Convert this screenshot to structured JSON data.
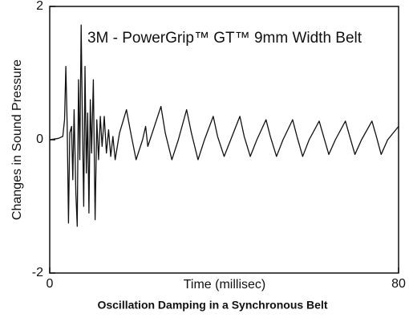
{
  "chart_data": {
    "type": "line",
    "title": "3M - PowerGrip™ GT™ 9mm Width Belt",
    "caption": "Oscillation Damping in a Synchronous Belt",
    "x_label": "Time (millisec)",
    "y_label": "Changes in Sound Pressure",
    "x": [
      0,
      2,
      3,
      3.4,
      3.7,
      4.0,
      4.3,
      4.6,
      5.0,
      5.3,
      5.6,
      6.0,
      6.3,
      6.6,
      6.9,
      7.2,
      7.5,
      7.8,
      8.1,
      8.4,
      8.7,
      9.0,
      9.3,
      9.6,
      10.0,
      10.4,
      10.8,
      11.2,
      11.6,
      12.0,
      12.5,
      13.0,
      13.5,
      14.0,
      14.5,
      15.0,
      16.0,
      17.6,
      18.6,
      19.8,
      21.3,
      22,
      22.5,
      23.5,
      25.5,
      26.5,
      28,
      29.5,
      31.4,
      32.5,
      34,
      35.5,
      37.5,
      38.5,
      40,
      41.5,
      43.6,
      44.6,
      46,
      47.5,
      49.6,
      50.6,
      52,
      53.5,
      55.7,
      56.7,
      58,
      59.5,
      61.8,
      62.8,
      64,
      65.5,
      67.8,
      68.8,
      70,
      71.5,
      73.9,
      74.9,
      76,
      77.5,
      80
    ],
    "series": [
      {
        "color": "#111111",
        "values": [
          0,
          0.02,
          0.05,
          0.3,
          1.1,
          0.2,
          -1.25,
          0.1,
          0.2,
          -0.6,
          0.45,
          -0.8,
          -1.3,
          0.9,
          -0.3,
          1.72,
          0.2,
          -1.0,
          1.1,
          -0.5,
          0.4,
          -1.1,
          0.6,
          -0.2,
          0.9,
          -1.2,
          0.3,
          -0.3,
          0.35,
          -0.1,
          0.35,
          -0.2,
          0.15,
          -0.25,
          0.05,
          -0.3,
          0.1,
          0.45,
          0.1,
          -0.3,
          0.0,
          0.2,
          -0.1,
          0.1,
          0.5,
          0.1,
          -0.3,
          0.0,
          0.45,
          0.1,
          -0.3,
          0.0,
          0.35,
          0.05,
          -0.25,
          0.0,
          0.35,
          0.05,
          -0.25,
          0.0,
          0.3,
          0.05,
          -0.25,
          0.0,
          0.3,
          0.05,
          -0.25,
          0.0,
          0.28,
          0.05,
          -0.22,
          0.0,
          0.28,
          0.05,
          -0.22,
          0.0,
          0.28,
          0.05,
          -0.22,
          0.0,
          0.2
        ]
      }
    ],
    "xlim": [
      0,
      80
    ],
    "xticks": [
      0,
      80
    ],
    "ylim": [
      -2,
      2
    ],
    "yticks": [
      -2,
      0,
      2
    ]
  }
}
